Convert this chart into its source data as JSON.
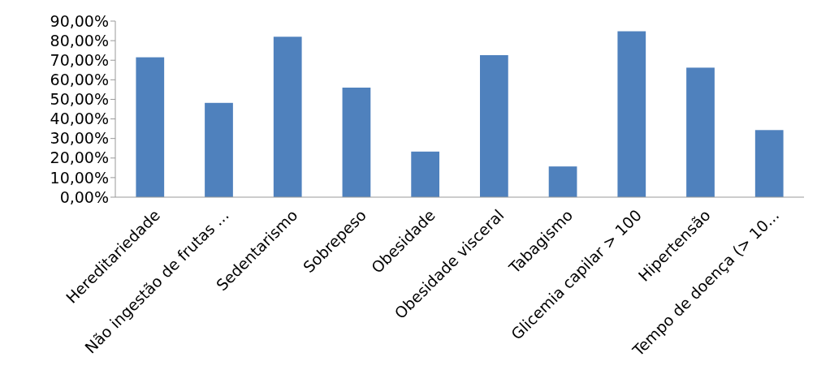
{
  "chart_data": {
    "type": "bar",
    "categories": [
      "Hereditariedade",
      "Não ingestão de frutas ...",
      "Sedentarismo",
      "Sobrepeso",
      "Obesidade",
      "Obesidade visceral",
      "Tabagismo",
      "Glicemia capilar > 100",
      "Hipertensão",
      "Tempo de doença (> 10..."
    ],
    "values": [
      71.5,
      48.2,
      82.0,
      56.0,
      23.3,
      72.6,
      15.7,
      84.8,
      66.2,
      34.3
    ],
    "color": "#4f81bd",
    "ylim": [
      0,
      90
    ],
    "yticks": [
      {
        "value": 0,
        "label": "0,00%"
      },
      {
        "value": 10,
        "label": "10,00%"
      },
      {
        "value": 20,
        "label": "20,00%"
      },
      {
        "value": 30,
        "label": "30,00%"
      },
      {
        "value": 40,
        "label": "40,00%"
      },
      {
        "value": 50,
        "label": "50,00%"
      },
      {
        "value": 60,
        "label": "60,00%"
      },
      {
        "value": 70,
        "label": "70,00%"
      },
      {
        "value": 80,
        "label": "80,00%"
      },
      {
        "value": 90,
        "label": "90,00%"
      }
    ],
    "grid": false
  }
}
